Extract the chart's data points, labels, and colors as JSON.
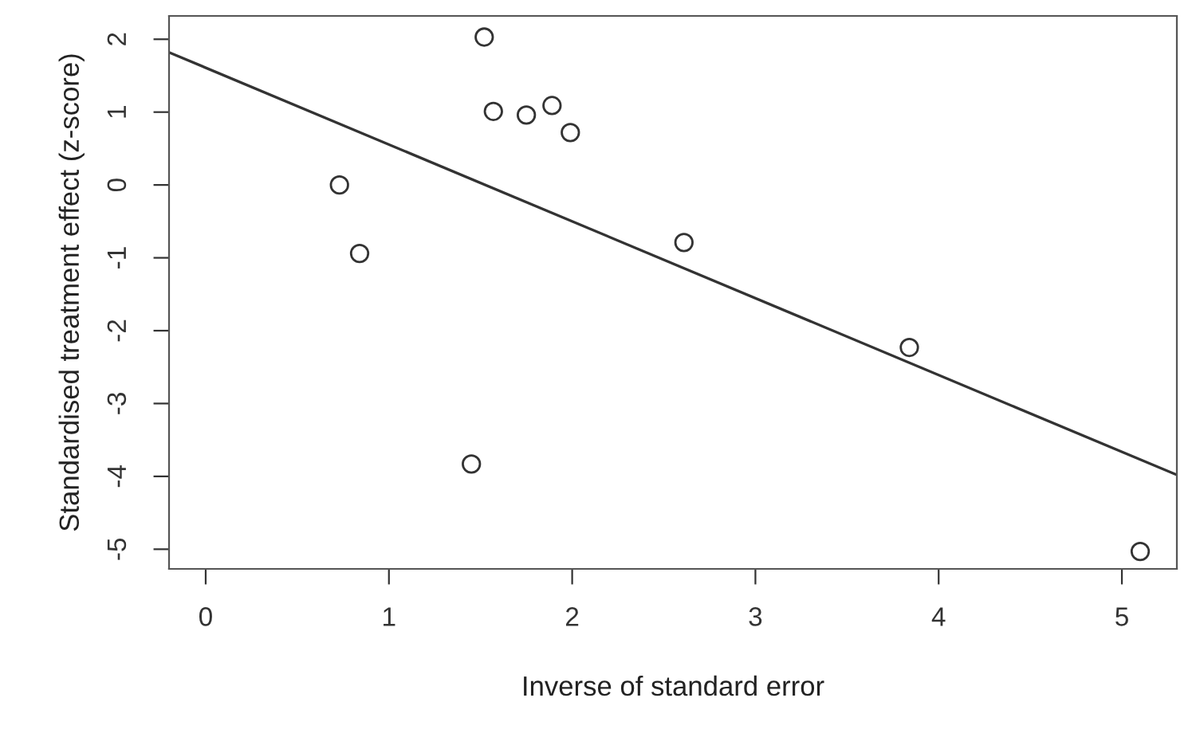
{
  "chart_data": {
    "type": "scatter",
    "xlabel": "Inverse of standard error",
    "ylabel": "Standardised treatment effect (z-score)",
    "xlim": [
      -0.2,
      5.3
    ],
    "ylim": [
      -5.27,
      2.32
    ],
    "xticks": [
      0,
      1,
      2,
      3,
      4,
      5
    ],
    "yticks": [
      2,
      1,
      0,
      -1,
      -2,
      -3,
      -4,
      -5
    ],
    "grid": false,
    "legend": false,
    "series": [
      {
        "marker": "circle",
        "color": "#333333",
        "x": [
          0.73,
          0.84,
          1.52,
          1.57,
          1.75,
          1.89,
          1.99,
          2.61,
          1.45,
          3.84,
          5.1
        ],
        "values": [
          0.0,
          -0.94,
          2.03,
          1.01,
          0.96,
          1.09,
          0.72,
          -0.79,
          -3.83,
          -2.23,
          -5.03
        ]
      },
      {
        "type": "line",
        "color": "#333333",
        "line_style": "solid",
        "x": [
          -0.2,
          5.3
        ],
        "values": [
          1.82,
          -3.98
        ]
      }
    ]
  }
}
